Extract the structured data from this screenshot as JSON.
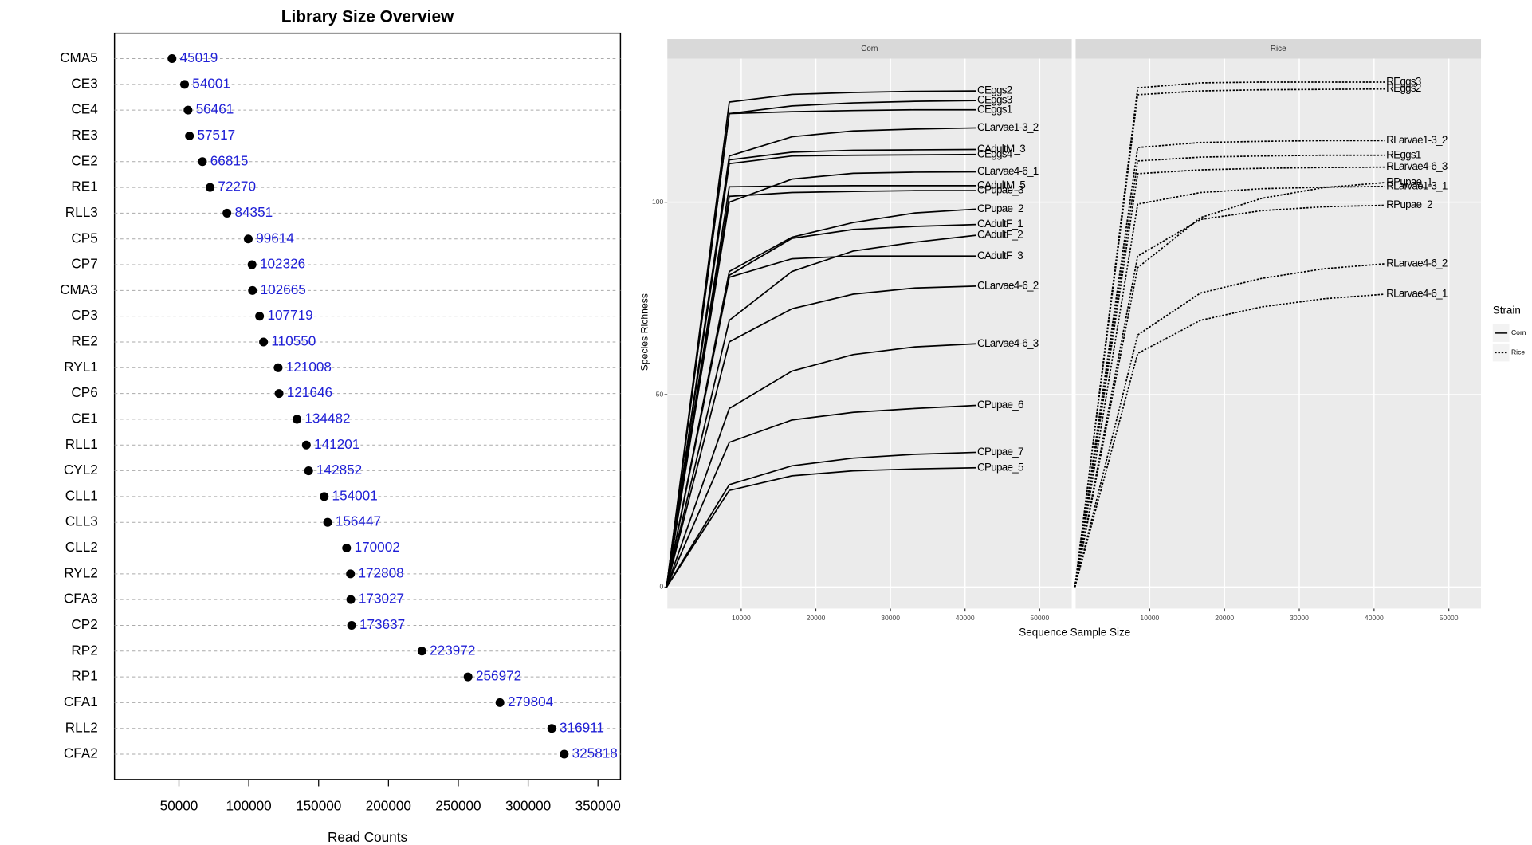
{
  "chart_data": [
    {
      "type": "dot",
      "title": "Library Size Overview",
      "xlabel": "Read Counts",
      "categories": [
        "CMA5",
        "CE3",
        "CE4",
        "RE3",
        "CE2",
        "RE1",
        "RLL3",
        "CP5",
        "CP7",
        "CMA3",
        "CP3",
        "RE2",
        "RYL1",
        "CP6",
        "CE1",
        "RLL1",
        "CYL2",
        "CLL1",
        "CLL3",
        "CLL2",
        "RYL2",
        "CFA3",
        "CP2",
        "RP2",
        "RP1",
        "CFA1",
        "RLL2",
        "CFA2"
      ],
      "values": [
        45019,
        54001,
        56461,
        57517,
        66815,
        72270,
        84351,
        99614,
        102326,
        102665,
        107719,
        110550,
        121008,
        121646,
        134482,
        141201,
        142852,
        154001,
        156447,
        170002,
        172808,
        173027,
        173637,
        223972,
        256972,
        279804,
        316911,
        325818
      ],
      "xlim": [
        3850,
        366100
      ],
      "xticks": [
        50000,
        100000,
        150000,
        200000,
        250000,
        300000,
        350000
      ],
      "color": "#000000",
      "label_color": "#1f1fd6",
      "grid": true
    },
    {
      "type": "line",
      "ylabel": "Species Richness",
      "xlabel": "Sequence Sample Size",
      "legend_title": "Strain",
      "x": [
        0,
        8400,
        16800,
        25000,
        33300,
        41500
      ],
      "xlim": [
        100,
        54300
      ],
      "xticks": [
        10000,
        20000,
        30000,
        40000,
        50000
      ],
      "ylim": [
        -5.6,
        137.3
      ],
      "yticks": [
        0,
        50,
        100
      ],
      "color": "#000000",
      "grid": true,
      "panels": [
        {
          "title": "Corn",
          "dash": "solid",
          "series": [
            {
              "name": "CEggs2",
              "values": [
                0,
                126,
                128,
                128.5,
                128.8,
                128.9
              ]
            },
            {
              "name": "CEggs3",
              "values": [
                0,
                123,
                125,
                125.8,
                126.2,
                126.4
              ]
            },
            {
              "name": "CEggs1",
              "values": [
                0,
                123,
                123.5,
                123.8,
                124,
                124
              ]
            },
            {
              "name": "CLarvae1-3_2",
              "values": [
                0,
                112,
                117,
                118.5,
                119,
                119.3
              ]
            },
            {
              "name": "CAdultM_3",
              "values": [
                0,
                111,
                113,
                113.5,
                113.6,
                113.7
              ]
            },
            {
              "name": "CEggs4",
              "values": [
                0,
                110,
                112,
                112.2,
                112.3,
                112.4
              ]
            },
            {
              "name": "CLarvae4-6_1",
              "values": [
                0,
                100,
                106,
                107.5,
                107.8,
                107.9
              ]
            },
            {
              "name": "CAdultM_5",
              "values": [
                0,
                104,
                104.2,
                104.3,
                104.3,
                104.3
              ]
            },
            {
              "name": "CPupae_3",
              "values": [
                0,
                101.5,
                102.5,
                102.8,
                103,
                103
              ]
            },
            {
              "name": "CPupae_2",
              "values": [
                0,
                82,
                90.9,
                94.7,
                97.2,
                98.2
              ]
            },
            {
              "name": "CAdultF_1",
              "values": [
                0,
                81,
                90.6,
                92.9,
                93.7,
                94.2
              ]
            },
            {
              "name": "CAdultF_2",
              "values": [
                0,
                69.3,
                82,
                87.3,
                89.6,
                91.4
              ]
            },
            {
              "name": "CAdultF_3",
              "values": [
                0,
                80.5,
                85.3,
                86,
                86,
                86
              ]
            },
            {
              "name": "CLarvae4-6_2",
              "values": [
                0,
                63.7,
                72.3,
                76.1,
                77.7,
                78.2
              ]
            },
            {
              "name": "CLarvae4-6_3",
              "values": [
                0,
                46.4,
                56.1,
                60.4,
                62.4,
                63.2
              ]
            },
            {
              "name": "CPupae_6",
              "values": [
                0,
                37.6,
                43.4,
                45.4,
                46.4,
                47.2
              ]
            },
            {
              "name": "CPupae_7",
              "values": [
                0,
                26.6,
                31.5,
                33.5,
                34.5,
                35
              ]
            },
            {
              "name": "CPupae_5",
              "values": [
                0,
                25.1,
                28.9,
                30.2,
                30.7,
                31
              ]
            }
          ]
        },
        {
          "title": "Rice",
          "dash": "dotted",
          "series": [
            {
              "name": "REggs3",
              "values": [
                0,
                129.7,
                131,
                131.2,
                131.2,
                131.2
              ]
            },
            {
              "name": "REggs2",
              "values": [
                0,
                127.9,
                128.9,
                129.2,
                129.3,
                129.4
              ]
            },
            {
              "name": "RLarvae1-3_2",
              "values": [
                0,
                114.2,
                115.5,
                115.8,
                116,
                116
              ]
            },
            {
              "name": "REggs1",
              "values": [
                0,
                110.7,
                111.7,
                112,
                112.2,
                112.2
              ]
            },
            {
              "name": "RLarvae4-6_3",
              "values": [
                0,
                107.4,
                108.4,
                108.8,
                109,
                109.1
              ]
            },
            {
              "name": "RPupae_1",
              "values": [
                0,
                83,
                96,
                101,
                103.8,
                105.1
              ]
            },
            {
              "name": "RLarvae1-3_1",
              "values": [
                0,
                99.5,
                102.5,
                103.5,
                103.9,
                104.1
              ]
            },
            {
              "name": "RPupae_2",
              "values": [
                0,
                86,
                95.5,
                97.8,
                98.8,
                99.2
              ]
            },
            {
              "name": "RLarvae4-6_2",
              "values": [
                0,
                65.5,
                76.4,
                80.2,
                82.7,
                84
              ]
            },
            {
              "name": "RLarvae4-6_1",
              "values": [
                0,
                60.7,
                69.3,
                72.8,
                74.9,
                76.1
              ]
            }
          ]
        }
      ]
    }
  ]
}
